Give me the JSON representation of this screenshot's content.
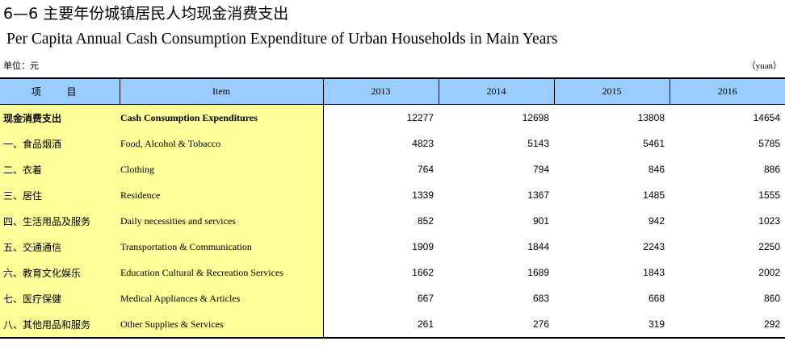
{
  "title_cn": "6—6  主要年份城镇居民人均现金消费支出",
  "title_en": "Per Capita Annual Cash Consumption Expenditure of Urban Households in Main Years",
  "unit_cn": "单位：元",
  "unit_en": "（yuan）",
  "header": {
    "col_cn": "项 目",
    "col_en": "Item",
    "years": [
      "2013",
      "2014",
      "2015",
      "2016"
    ]
  },
  "rows": [
    {
      "cn": "现金消费支出",
      "en": "Cash Consumption Expenditures",
      "values": [
        "12277",
        "12698",
        "13808",
        "14654"
      ]
    },
    {
      "cn": "一、食品烟酒",
      "en": "Food, Alcohol & Tobacco",
      "values": [
        "4823",
        "5143",
        "5461",
        "5785"
      ]
    },
    {
      "cn": "二、衣着",
      "en": "Clothing",
      "values": [
        "764",
        "794",
        "846",
        "886"
      ]
    },
    {
      "cn": "三、居住",
      "en": "Residence",
      "values": [
        "1339",
        "1367",
        "1485",
        "1555"
      ]
    },
    {
      "cn": "四、生活用品及服务",
      "en": "Daily necessities and services",
      "values": [
        "852",
        "901",
        "942",
        "1023"
      ]
    },
    {
      "cn": "五、交通通信",
      "en": "Transportation & Communication",
      "values": [
        "1909",
        "1844",
        "2243",
        "2250"
      ]
    },
    {
      "cn": "六、教育文化娱乐",
      "en": "Education Cultural & Recreation Services",
      "values": [
        "1662",
        "1689",
        "1843",
        "2002"
      ]
    },
    {
      "cn": "七、医疗保健",
      "en": "Medical Appliances & Articles",
      "values": [
        "667",
        "683",
        "668",
        "860"
      ]
    },
    {
      "cn": "八、其他用品和服务",
      "en": "Other Supplies & Services",
      "values": [
        "261",
        "276",
        "319",
        "292"
      ]
    }
  ],
  "colors": {
    "header_bg": "#99ccff",
    "label_bg": "#ffff99"
  }
}
